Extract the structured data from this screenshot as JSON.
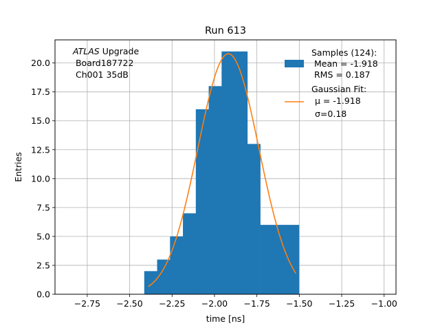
{
  "chart_data": {
    "type": "bar",
    "title": "Run 613",
    "xlabel": "time [ns]",
    "ylabel": "Entries",
    "xlim": [
      -2.94,
      -0.93
    ],
    "ylim": [
      0,
      22
    ],
    "grid": true,
    "legend_position": "top-right",
    "x_ticks": [
      -2.75,
      -2.5,
      -2.25,
      -2.0,
      -1.75,
      -1.5,
      -1.25,
      -1.0
    ],
    "x_tick_labels": [
      "−2.75",
      "−2.50",
      "−2.25",
      "−2.00",
      "−1.75",
      "−1.50",
      "−1.25",
      "−1.00"
    ],
    "y_ticks": [
      0,
      2.5,
      5.0,
      7.5,
      10.0,
      12.5,
      15.0,
      17.5,
      20.0
    ],
    "y_tick_labels": [
      "0.0",
      "2.5",
      "5.0",
      "7.5",
      "10.0",
      "12.5",
      "15.0",
      "17.5",
      "20.0"
    ],
    "bins": [
      {
        "x0": -2.414,
        "x1": -2.338,
        "count": 2
      },
      {
        "x0": -2.338,
        "x1": -2.262,
        "count": 3
      },
      {
        "x0": -2.262,
        "x1": -2.186,
        "count": 5
      },
      {
        "x0": -2.186,
        "x1": -2.11,
        "count": 7
      },
      {
        "x0": -2.11,
        "x1": -2.034,
        "count": 16
      },
      {
        "x0": -2.034,
        "x1": -1.958,
        "count": 18
      },
      {
        "x0": -1.958,
        "x1": -1.882,
        "count": 21
      },
      {
        "x0": -1.882,
        "x1": -1.806,
        "count": 21
      },
      {
        "x0": -1.806,
        "x1": -1.73,
        "count": 13
      },
      {
        "x0": -1.73,
        "x1": -1.654,
        "count": 6
      },
      {
        "x0": -1.654,
        "x1": -1.578,
        "count": 6
      },
      {
        "x0": -1.578,
        "x1": -1.502,
        "count": 6
      }
    ],
    "fit": {
      "type": "gaussian",
      "mu": -1.918,
      "sigma": 0.18,
      "amplitude": 20.8,
      "x_range": [
        -2.39,
        -1.52
      ]
    },
    "series": [
      {
        "name_line1": "Samples (124):",
        "name_line2": " Mean = -1.918",
        "name_line3": " RMS = 0.187",
        "color": "#1f77b4"
      },
      {
        "name_line1": "Gaussian Fit:",
        "name_line2": "μ = -1.918",
        "name_line3": "σ=0.18",
        "color": "#ff7f0e"
      }
    ],
    "annotation": {
      "line1_italic": "ATLAS",
      "line1_rest": " Upgrade",
      "line2": " Board187722",
      "line3": " Ch001 35dB"
    }
  }
}
